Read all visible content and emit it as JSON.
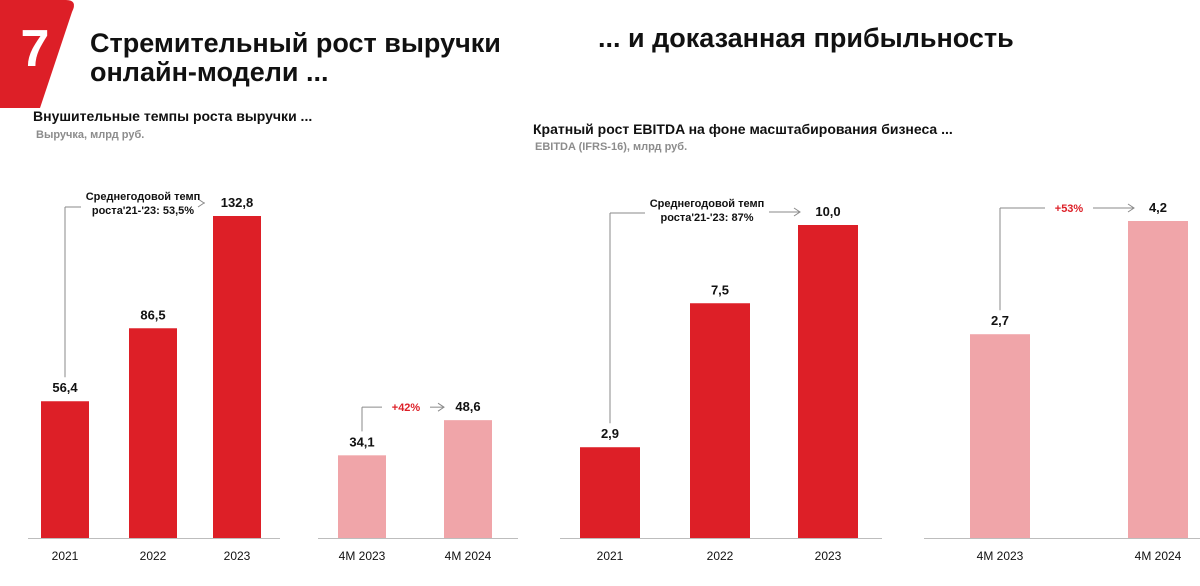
{
  "slide": {
    "number": "7",
    "title_left_line1": "Стремительный рост выручки",
    "title_left_line2": "онлайн-модели ...",
    "title_right": "... и доказанная прибыльность"
  },
  "left_section": {
    "title": "Внушительные темпы роста выручки ...",
    "subtitle": "Выручка, млрд руб."
  },
  "right_section": {
    "title": "Кратный рост EBITDA на фоне масштабирования бизнеса ...",
    "subtitle": "EBITDA (IFRS-16), млрд руб."
  },
  "colors": {
    "dark": "#dd1f27",
    "light": "#f0a5a9",
    "accent_text": "#dd1f27",
    "connector": "#8a8a8a"
  },
  "chart_data": [
    {
      "type": "bar",
      "categories": [
        "2021",
        "2022",
        "2023"
      ],
      "values": [
        56.4,
        86.5,
        132.8
      ],
      "value_labels": [
        "56,4",
        "86,5",
        "132,8"
      ],
      "annotation_line1": "Среднегодовой темп",
      "annotation_line2": "роста'21-'23: 53,5%",
      "color": "dark"
    },
    {
      "type": "bar",
      "categories": [
        "4M 2023",
        "4M 2024"
      ],
      "values": [
        34.1,
        48.6
      ],
      "value_labels": [
        "34,1",
        "48,6"
      ],
      "annotation_line1": "+42%",
      "color": "light"
    },
    {
      "type": "bar",
      "categories": [
        "2021",
        "2022",
        "2023"
      ],
      "values": [
        2.9,
        7.5,
        10.0
      ],
      "value_labels": [
        "2,9",
        "7,5",
        "10,0"
      ],
      "annotation_line1": "Среднегодовой темп",
      "annotation_line2": "роста'21-'23: 87%",
      "color": "dark"
    },
    {
      "type": "bar",
      "categories": [
        "4M 2023",
        "4M 2024"
      ],
      "values": [
        2.7,
        4.2
      ],
      "value_labels": [
        "2,7",
        "4,2"
      ],
      "annotation_line1": "+53%",
      "color": "light"
    }
  ]
}
